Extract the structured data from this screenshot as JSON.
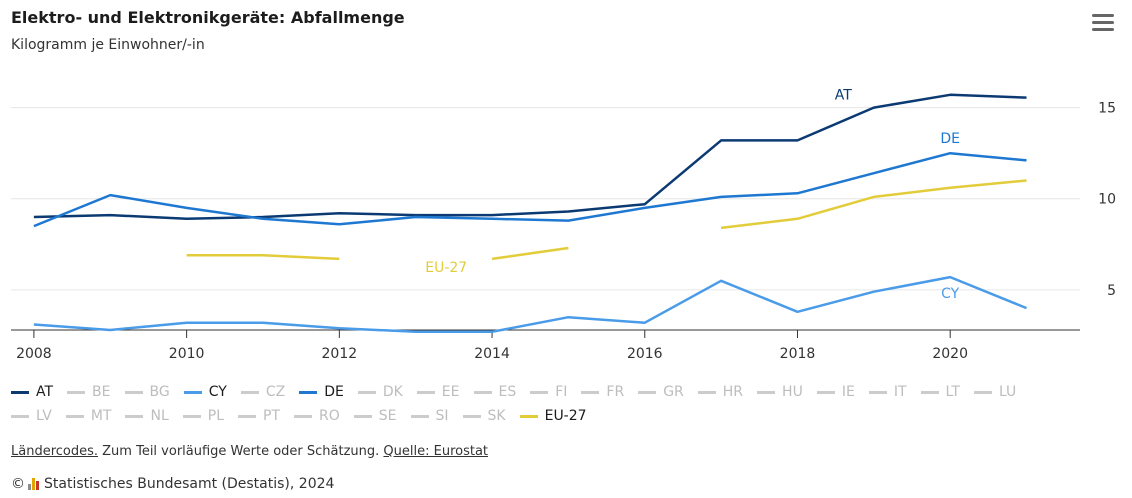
{
  "header": {
    "title": "Elektro- und Elektronikgeräte: Abfallmenge",
    "subtitle": "Kilogramm je Einwohner/-in"
  },
  "menu_icon": "hamburger-menu-icon",
  "chart_data": {
    "type": "line",
    "title": "Elektro- und Elektronikgeräte: Abfallmenge",
    "subtitle": "Kilogramm je Einwohner/-in",
    "xlabel": "",
    "ylabel": "",
    "xlim": [
      2007.7,
      2021.7
    ],
    "ylim": [
      2.8,
      17.5
    ],
    "x_ticks": [
      2008,
      2010,
      2012,
      2014,
      2016,
      2018,
      2020
    ],
    "y_ticks": [
      5,
      10,
      15
    ],
    "grid": true,
    "y_axis_position": "right",
    "legend_position": "bottom",
    "series": [
      {
        "name": "AT",
        "color": "#0b3a73",
        "label_at": 2018.6,
        "points": [
          [
            2008,
            9.0
          ],
          [
            2009,
            9.1
          ],
          [
            2010,
            8.9
          ],
          [
            2011,
            9.0
          ],
          [
            2012,
            9.2
          ],
          [
            2013,
            9.1
          ],
          [
            2014,
            9.1
          ],
          [
            2015,
            9.3
          ],
          [
            2016,
            9.7
          ],
          [
            2017,
            13.2
          ],
          [
            2018,
            13.2
          ],
          [
            2019,
            15.0
          ],
          [
            2020,
            15.7
          ],
          [
            2021,
            15.55
          ]
        ]
      },
      {
        "name": "DE",
        "color": "#1e78d2",
        "label_at": 2020,
        "points": [
          [
            2008,
            8.5
          ],
          [
            2009,
            10.2
          ],
          [
            2010,
            9.5
          ],
          [
            2011,
            8.9
          ],
          [
            2012,
            8.6
          ],
          [
            2013,
            9.0
          ],
          [
            2014,
            8.9
          ],
          [
            2015,
            8.8
          ],
          [
            2016,
            9.5
          ],
          [
            2017,
            10.1
          ],
          [
            2018,
            10.3
          ],
          [
            2019,
            11.4
          ],
          [
            2020,
            12.5
          ],
          [
            2021,
            12.1
          ]
        ]
      },
      {
        "name": "CY",
        "color": "#4a9be8",
        "label_at": 2020,
        "points": [
          [
            2008,
            3.1
          ],
          [
            2009,
            2.8
          ],
          [
            2010,
            3.2
          ],
          [
            2011,
            3.2
          ],
          [
            2012,
            2.9
          ],
          [
            2013,
            2.7
          ],
          [
            2014,
            2.7
          ],
          [
            2015,
            3.5
          ],
          [
            2016,
            3.2
          ],
          [
            2017,
            5.5
          ],
          [
            2018,
            3.8
          ],
          [
            2019,
            4.9
          ],
          [
            2020,
            5.7
          ],
          [
            2021,
            4.0
          ]
        ]
      },
      {
        "name": "EU-27",
        "color": "#e2cc3a",
        "label_at": 2013.4,
        "points": [
          [
            2010,
            6.9
          ],
          [
            2011,
            6.9
          ],
          [
            2012,
            6.7
          ],
          [
            2013,
            null
          ],
          [
            2014,
            6.7
          ],
          [
            2015,
            7.3
          ],
          [
            2016,
            null
          ],
          [
            2017,
            8.4
          ],
          [
            2018,
            8.9
          ],
          [
            2019,
            10.1
          ],
          [
            2020,
            10.6
          ],
          [
            2021,
            11.0
          ]
        ]
      }
    ],
    "series_labels": [
      "AT",
      "DE",
      "CY",
      "EU-27"
    ]
  },
  "legend": {
    "rows": [
      [
        {
          "name": "AT",
          "color": "#0b3a73",
          "active": true
        },
        {
          "name": "BE",
          "color": "#cccccc",
          "active": false
        },
        {
          "name": "BG",
          "color": "#cccccc",
          "active": false
        },
        {
          "name": "CY",
          "color": "#4a9be8",
          "active": true
        },
        {
          "name": "CZ",
          "color": "#cccccc",
          "active": false
        },
        {
          "name": "DE",
          "color": "#1e78d2",
          "active": true
        },
        {
          "name": "DK",
          "color": "#cccccc",
          "active": false
        },
        {
          "name": "EE",
          "color": "#cccccc",
          "active": false
        },
        {
          "name": "ES",
          "color": "#cccccc",
          "active": false
        },
        {
          "name": "FI",
          "color": "#cccccc",
          "active": false
        },
        {
          "name": "FR",
          "color": "#cccccc",
          "active": false
        },
        {
          "name": "GR",
          "color": "#cccccc",
          "active": false
        },
        {
          "name": "HR",
          "color": "#cccccc",
          "active": false
        },
        {
          "name": "HU",
          "color": "#cccccc",
          "active": false
        },
        {
          "name": "IE",
          "color": "#cccccc",
          "active": false
        },
        {
          "name": "IT",
          "color": "#cccccc",
          "active": false
        },
        {
          "name": "LT",
          "color": "#cccccc",
          "active": false
        },
        {
          "name": "LU",
          "color": "#cccccc",
          "active": false
        }
      ],
      [
        {
          "name": "LV",
          "color": "#cccccc",
          "active": false
        },
        {
          "name": "MT",
          "color": "#cccccc",
          "active": false
        },
        {
          "name": "NL",
          "color": "#cccccc",
          "active": false
        },
        {
          "name": "PL",
          "color": "#cccccc",
          "active": false
        },
        {
          "name": "PT",
          "color": "#cccccc",
          "active": false
        },
        {
          "name": "RO",
          "color": "#cccccc",
          "active": false
        },
        {
          "name": "SE",
          "color": "#cccccc",
          "active": false
        },
        {
          "name": "SI",
          "color": "#cccccc",
          "active": false
        },
        {
          "name": "SK",
          "color": "#cccccc",
          "active": false
        },
        {
          "name": "EU-27",
          "color": "#e2cc3a",
          "active": true
        }
      ]
    ]
  },
  "footnote": {
    "link1": "Ländercodes.",
    "middle": " Zum Teil vorläufige Werte oder Schätzung. ",
    "link2": "Quelle: Eurostat"
  },
  "credit": {
    "copyright": "©",
    "text": "Statistisches Bundesamt (Destatis), 2024",
    "logo_icon": "destatis-logo-icon"
  }
}
